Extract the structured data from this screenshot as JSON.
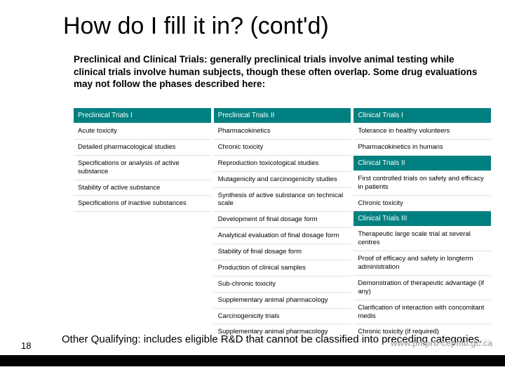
{
  "title": "How do I fill it in? (cont'd)",
  "intro": "Preclinical and Clinical Trials: generally preclinical trials involve animal testing while clinical trials involve human subjects, though these often overlap. Some drug evaluations may not follow the phases described here:",
  "col1": {
    "header": "Preclinical Trials I",
    "rows": [
      "Acute toxicity",
      "Detailed pharmacological studies",
      "Specifications or analysis of active substance",
      "Stability of active substance",
      "Specifications of inactive substances"
    ]
  },
  "col2": {
    "header": "Preclinical Trials II",
    "rows": [
      "Pharmacokinetics",
      "Chronic toxicity",
      "Reproduction toxicological studies",
      "Mutagenicity and carcinogenicity studies",
      "Synthesis of active substance on technical scale",
      "Development of final dosage form",
      "Analytical evaluation of final dosage form",
      "Stability of final dosage form",
      "Production of clinical samples",
      "Sub-chronic toxicity",
      "Supplementary animal pharmacology",
      "Carcinogenicity trials",
      "Supplementary animal pharmacology"
    ]
  },
  "col3": {
    "header1": "Clinical Trials I",
    "rows1": [
      "Tolerance in healthy volunteers",
      "Pharmacokinetics in humans"
    ],
    "header2": "Clinical Trials II",
    "rows2": [
      "First controlled trials on safety and efficacy in patients",
      "Chronic toxicity"
    ],
    "header3": "Clinical Trials III",
    "rows3": [
      "Therapeutic large scale trial at several centres",
      "Proof of efficacy and safety in longterm administration",
      "Demonstration of therapeutic advantage (if any)",
      "Clarification of interaction with concomitant medis",
      "Chronic toxicity (if required)"
    ]
  },
  "bottom": "Other Qualifying: includes eligible R&D that cannot be classified into preceding categories.",
  "page": "18",
  "url": "www.pmprb-cepmb.gc.ca",
  "colors": {
    "header_bg": "#008080",
    "header_fg": "#ffffff",
    "text": "#000000",
    "url_color": "#b0b0b0",
    "bar": "#000000"
  }
}
